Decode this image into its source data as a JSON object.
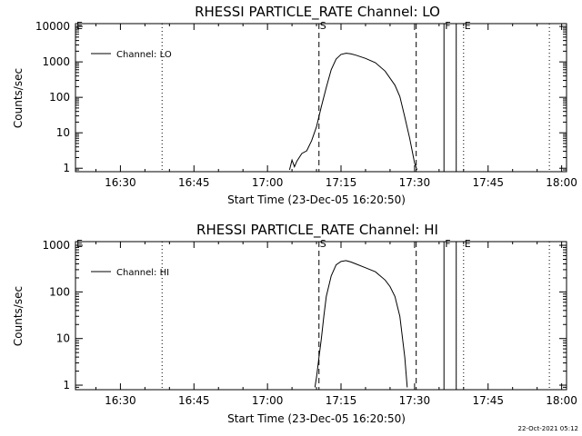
{
  "footer_timestamp": "22-Oct-2021 05:12",
  "chart_data": [
    {
      "type": "line",
      "title": "RHESSI PARTICLE_RATE Channel: LO",
      "xlabel": "Start Time (23-Dec-05 16:20:50)",
      "ylabel": "Counts/sec",
      "xlim": [
        "16:20:50",
        "18:01:00"
      ],
      "ylim": [
        0.8,
        12000
      ],
      "y_scale": "log",
      "x_ticks": [
        "16:30",
        "16:45",
        "17:00",
        "17:15",
        "17:30",
        "17:45",
        "18:00"
      ],
      "y_ticks": [
        "1",
        "10",
        "100",
        "1000",
        "10000"
      ],
      "grid": false,
      "legend": {
        "position": "top-left"
      },
      "series": [
        {
          "name": "Channel: LO",
          "x": [
            "17:04:30",
            "17:05:00",
            "17:05:30",
            "17:06:00",
            "17:07:00",
            "17:08:00",
            "17:09:00",
            "17:10:00",
            "17:11:00",
            "17:12:00",
            "17:13:00",
            "17:14:00",
            "17:15:00",
            "17:16:00",
            "17:17:00",
            "17:18:00",
            "17:20:00",
            "17:22:00",
            "17:24:00",
            "17:26:00",
            "17:27:00",
            "17:28:00",
            "17:29:00",
            "17:30:00",
            "17:30:30"
          ],
          "values": [
            0.9,
            1.7,
            1.1,
            1.6,
            2.6,
            3.1,
            6,
            15,
            55,
            190,
            600,
            1200,
            1620,
            1750,
            1680,
            1550,
            1250,
            950,
            550,
            220,
            105,
            28,
            7,
            1.4,
            0.9
          ]
        }
      ],
      "markers": [
        {
          "label": "S",
          "time": "17:10:30",
          "style": "dashed"
        },
        {
          "label": "",
          "time": "17:30:20",
          "style": "dashed"
        },
        {
          "label": "F",
          "time": "17:36:00",
          "style": "solid"
        },
        {
          "label": "",
          "time": "17:38:30",
          "style": "solid"
        },
        {
          "label": "E",
          "time": "17:40:00",
          "style": "dotted"
        },
        {
          "label": "",
          "time": "16:38:30",
          "style": "dotted"
        },
        {
          "label": "",
          "time": "17:57:30",
          "style": "dotted"
        },
        {
          "label": "E",
          "time": "16:20:50",
          "style": "none"
        }
      ]
    },
    {
      "type": "line",
      "title": "RHESSI PARTICLE_RATE Channel: HI",
      "xlabel": "Start Time (23-Dec-05 16:20:50)",
      "ylabel": "Counts/sec",
      "xlim": [
        "16:20:50",
        "18:01:00"
      ],
      "ylim": [
        0.8,
        1200
      ],
      "y_scale": "log",
      "x_ticks": [
        "16:30",
        "16:45",
        "17:00",
        "17:15",
        "17:30",
        "17:45",
        "18:00"
      ],
      "y_ticks": [
        "1",
        "10",
        "100",
        "1000"
      ],
      "grid": false,
      "legend": {
        "position": "top-left"
      },
      "series": [
        {
          "name": "Channel: HI",
          "x": [
            "17:09:40",
            "17:10:00",
            "17:10:30",
            "17:11:00",
            "17:11:30",
            "17:12:00",
            "17:13:00",
            "17:14:00",
            "17:15:00",
            "17:16:00",
            "17:17:00",
            "17:18:00",
            "17:20:00",
            "17:22:00",
            "17:24:00",
            "17:25:00",
            "17:26:00",
            "17:27:00",
            "17:28:00",
            "17:28:30"
          ],
          "values": [
            0.9,
            1.5,
            4,
            10,
            30,
            80,
            220,
            380,
            450,
            470,
            440,
            400,
            330,
            270,
            180,
            130,
            80,
            30,
            4,
            0.9
          ]
        }
      ],
      "markers": [
        {
          "label": "S",
          "time": "17:10:30",
          "style": "dashed"
        },
        {
          "label": "",
          "time": "17:30:20",
          "style": "dashed"
        },
        {
          "label": "F",
          "time": "17:36:00",
          "style": "solid"
        },
        {
          "label": "",
          "time": "17:38:30",
          "style": "solid"
        },
        {
          "label": "E",
          "time": "17:40:00",
          "style": "dotted"
        },
        {
          "label": "",
          "time": "16:38:30",
          "style": "dotted"
        },
        {
          "label": "",
          "time": "17:57:30",
          "style": "dotted"
        },
        {
          "label": "E",
          "time": "16:20:50",
          "style": "none"
        }
      ]
    }
  ]
}
